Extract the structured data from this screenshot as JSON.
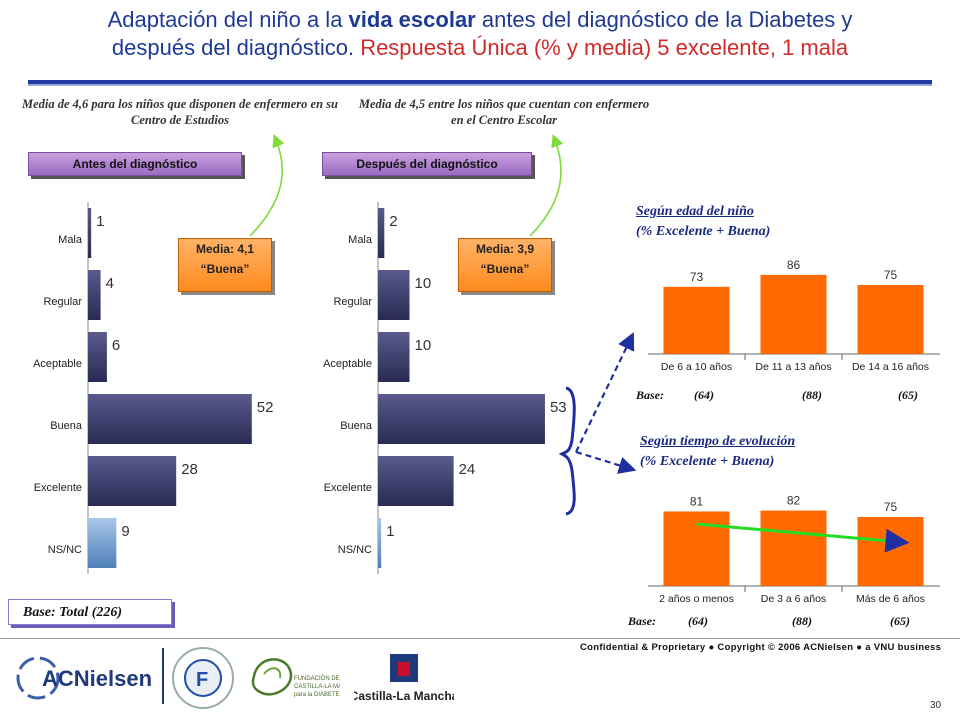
{
  "title": {
    "part1": "Adaptación del niño a la ",
    "bold": "vida escolar",
    "part2": " antes del diagnóstico de la Diabetes y",
    "line2": "después del diagnóstico. ",
    "red": "Respuesta Única (% y media) 5 excelente, 1 mala"
  },
  "notes": {
    "left": "Media de 4,6 para los niños que disponen de enfermero en su Centro de Estudios",
    "right": "Media de 4,5 entre los niños que cuentan con enfermero en el Centro Escolar"
  },
  "tabs": {
    "before": "Antes del diagnóstico",
    "after": "Después del diagnóstico"
  },
  "media_boxes": {
    "before": {
      "line1": "Media: 4,1",
      "line2": "“Buena”"
    },
    "after": {
      "line1": "Media: 3,9",
      "line2": "“Buena”"
    }
  },
  "sections": {
    "age": {
      "title1": "Según edad del niño",
      "title2": "(% Excelente + Buena)"
    },
    "evolution": {
      "title1": "Según tiempo de evolución",
      "title2": "(% Excelente + Buena)"
    }
  },
  "base_rows": {
    "age": {
      "label": "Base:",
      "values": [
        "(64)",
        "(88)",
        "(65)"
      ]
    },
    "evolution": {
      "label": "Base:",
      "values": [
        "(64)",
        "(88)",
        "(65)"
      ]
    }
  },
  "base_total": "Base: Total (226)",
  "footer": {
    "confidential": "Confidential & Proprietary ● Copyright © 2006 ACNielsen ● a VNU business",
    "page": "30",
    "logo_acnielsen": "ACNielsen",
    "logo_fundacion": "FUNDACION PARA LA DIABETES",
    "logo_castilla": "FUNDACIÓN DE CASTILLA-LA MANCHA para la DIABETES",
    "logo_clm": "Castilla-La Mancha"
  },
  "colors": {
    "bar_dark": "#3c3c6e",
    "bar_light": "#6f9ac8",
    "bar_orange": "#ff6a00",
    "trend": "#22dd22",
    "title_blue": "#1f3a93",
    "title_red": "#d02b2b"
  },
  "chart_data": [
    {
      "type": "bar",
      "orientation": "horizontal",
      "name": "before",
      "categories": [
        "Mala",
        "Regular",
        "Aceptable",
        "Buena",
        "Excelente",
        "NS/NC"
      ],
      "values": [
        1,
        4,
        6,
        52,
        28,
        9
      ],
      "xlim": [
        0,
        100
      ]
    },
    {
      "type": "bar",
      "orientation": "horizontal",
      "name": "after",
      "categories": [
        "Mala",
        "Regular",
        "Aceptable",
        "Buena",
        "Excelente",
        "NS/NC"
      ],
      "values": [
        2,
        10,
        10,
        53,
        24,
        1
      ],
      "xlim": [
        0,
        100
      ]
    },
    {
      "type": "bar",
      "name": "age",
      "categories": [
        "De 6 a 10 años",
        "De 11 a 13 años",
        "De 14 a 16 años"
      ],
      "values": [
        73,
        86,
        75
      ],
      "ylim": [
        0,
        100
      ]
    },
    {
      "type": "bar",
      "name": "evolution",
      "categories": [
        "2 años o menos",
        "De 3 a 6 años",
        "Más de 6 años"
      ],
      "values": [
        81,
        82,
        75
      ],
      "ylim": [
        0,
        100
      ],
      "trend_line": true
    }
  ]
}
